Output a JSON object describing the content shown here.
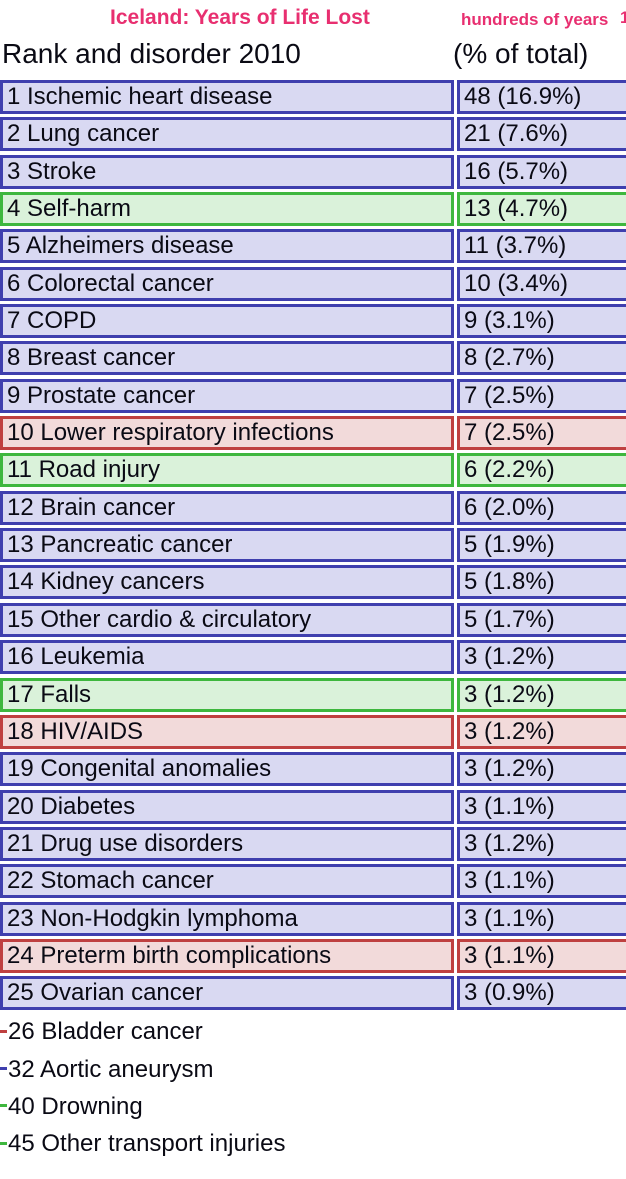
{
  "header": {
    "title": "Iceland: Years of Life Lost",
    "units": "hundreds of years",
    "units_clipped_fragment": "1",
    "column_left": "Rank and disorder 2010",
    "column_right": "(% of total)"
  },
  "colors": {
    "accent_pink": "#e82f70",
    "text": "#0a0a14",
    "blue": {
      "border": "#3f3fae",
      "fill": "#d9d9f2"
    },
    "green": {
      "border": "#3eb73e",
      "fill": "#daf2da"
    },
    "red": {
      "border": "#bf4040",
      "fill": "#f2dada"
    }
  },
  "chart_data": {
    "type": "table",
    "title": "Iceland: Years of Life Lost",
    "subtitle": "hundreds of years (% of total)",
    "columns": [
      "Rank and disorder 2010",
      "hundreds of years (% of total)"
    ],
    "rows": [
      {
        "rank": 1,
        "disorder": "Ischemic heart disease",
        "value": 48,
        "pct": 16.9,
        "display": "48 (16.9%)",
        "category": "blue"
      },
      {
        "rank": 2,
        "disorder": "Lung cancer",
        "value": 21,
        "pct": 7.6,
        "display": "21 (7.6%)",
        "category": "blue"
      },
      {
        "rank": 3,
        "disorder": "Stroke",
        "value": 16,
        "pct": 5.7,
        "display": "16 (5.7%)",
        "category": "blue"
      },
      {
        "rank": 4,
        "disorder": "Self-harm",
        "value": 13,
        "pct": 4.7,
        "display": "13 (4.7%)",
        "category": "green"
      },
      {
        "rank": 5,
        "disorder": "Alzheimers disease",
        "value": 11,
        "pct": 3.7,
        "display": "11 (3.7%)",
        "category": "blue"
      },
      {
        "rank": 6,
        "disorder": "Colorectal cancer",
        "value": 10,
        "pct": 3.4,
        "display": "10 (3.4%)",
        "category": "blue"
      },
      {
        "rank": 7,
        "disorder": "COPD",
        "value": 9,
        "pct": 3.1,
        "display": "9 (3.1%)",
        "category": "blue"
      },
      {
        "rank": 8,
        "disorder": "Breast cancer",
        "value": 8,
        "pct": 2.7,
        "display": "8 (2.7%)",
        "category": "blue"
      },
      {
        "rank": 9,
        "disorder": "Prostate cancer",
        "value": 7,
        "pct": 2.5,
        "display": "7 (2.5%)",
        "category": "blue"
      },
      {
        "rank": 10,
        "disorder": "Lower respiratory infections",
        "value": 7,
        "pct": 2.5,
        "display": "7 (2.5%)",
        "category": "red"
      },
      {
        "rank": 11,
        "disorder": "Road injury",
        "value": 6,
        "pct": 2.2,
        "display": "6 (2.2%)",
        "category": "green"
      },
      {
        "rank": 12,
        "disorder": "Brain cancer",
        "value": 6,
        "pct": 2.0,
        "display": "6 (2.0%)",
        "category": "blue"
      },
      {
        "rank": 13,
        "disorder": "Pancreatic cancer",
        "value": 5,
        "pct": 1.9,
        "display": "5 (1.9%)",
        "category": "blue"
      },
      {
        "rank": 14,
        "disorder": "Kidney cancers",
        "value": 5,
        "pct": 1.8,
        "display": "5 (1.8%)",
        "category": "blue"
      },
      {
        "rank": 15,
        "disorder": "Other cardio & circulatory",
        "value": 5,
        "pct": 1.7,
        "display": "5 (1.7%)",
        "category": "blue"
      },
      {
        "rank": 16,
        "disorder": "Leukemia",
        "value": 3,
        "pct": 1.2,
        "display": "3 (1.2%)",
        "category": "blue"
      },
      {
        "rank": 17,
        "disorder": "Falls",
        "value": 3,
        "pct": 1.2,
        "display": "3 (1.2%)",
        "category": "green"
      },
      {
        "rank": 18,
        "disorder": "HIV/AIDS",
        "value": 3,
        "pct": 1.2,
        "display": "3 (1.2%)",
        "category": "red"
      },
      {
        "rank": 19,
        "disorder": "Congenital anomalies",
        "value": 3,
        "pct": 1.2,
        "display": "3 (1.2%)",
        "category": "blue"
      },
      {
        "rank": 20,
        "disorder": "Diabetes",
        "value": 3,
        "pct": 1.1,
        "display": "3 (1.1%)",
        "category": "blue"
      },
      {
        "rank": 21,
        "disorder": "Drug use disorders",
        "value": 3,
        "pct": 1.2,
        "display": "3 (1.2%)",
        "category": "blue"
      },
      {
        "rank": 22,
        "disorder": "Stomach cancer",
        "value": 3,
        "pct": 1.1,
        "display": "3 (1.1%)",
        "category": "blue"
      },
      {
        "rank": 23,
        "disorder": "Non-Hodgkin lymphoma",
        "value": 3,
        "pct": 1.1,
        "display": "3 (1.1%)",
        "category": "blue"
      },
      {
        "rank": 24,
        "disorder": "Preterm birth complications",
        "value": 3,
        "pct": 1.1,
        "display": "3 (1.1%)",
        "category": "red"
      },
      {
        "rank": 25,
        "disorder": "Ovarian cancer",
        "value": 3,
        "pct": 0.9,
        "display": "3 (0.9%)",
        "category": "blue"
      }
    ],
    "unranked_rows": [
      {
        "rank": 26,
        "disorder": "Bladder cancer",
        "category": "red"
      },
      {
        "rank": 32,
        "disorder": "Aortic aneurysm",
        "category": "blue"
      },
      {
        "rank": 40,
        "disorder": "Drowning",
        "category": "green"
      },
      {
        "rank": 45,
        "disorder": "Other transport injuries",
        "category": "green"
      }
    ]
  }
}
